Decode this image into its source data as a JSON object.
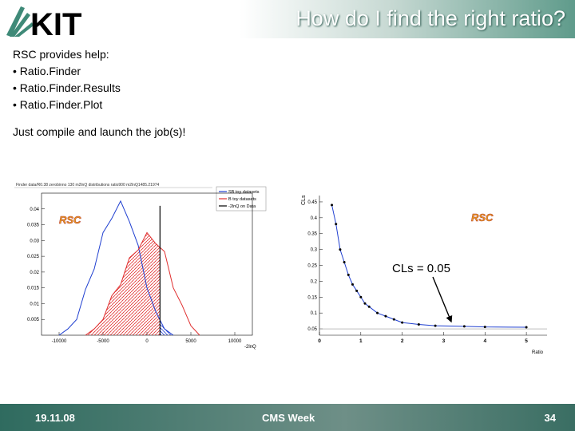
{
  "logo": {
    "text": "KIT"
  },
  "header": {
    "title": "How do I find the right ratio?"
  },
  "body": {
    "intro": "RSC provides help:",
    "bullets": [
      "• Ratio.Finder",
      "• Ratio.Finder.Results",
      "• Ratio.Finder.Plot"
    ],
    "note": "Just compile and launch the job(s)!"
  },
  "plot1": {
    "header_text": "Finder data/R0.38 zerobinno 130 m2lnQ distributions ratio900 m2lnQ1485.21974",
    "badge": "RSC",
    "legend": [
      "SB toy datasets",
      "B toy datasets",
      "-2lnQ on Data"
    ],
    "xlabel": "-2lnQ",
    "xticks": [
      "-10000",
      "-5000",
      "0",
      "5000",
      "10000"
    ],
    "yticks": [
      "0.005",
      "0.01",
      "0.015",
      "0.02",
      "0.025",
      "0.03",
      "0.035",
      "0.04"
    ]
  },
  "plot2": {
    "badge": "RSC",
    "ylabel": "CLs",
    "xlabel": "Ratio",
    "xticks": [
      "0",
      "1",
      "2",
      "3",
      "4",
      "5"
    ],
    "yticks": [
      "0.05",
      "0.1",
      "0.15",
      "0.2",
      "0.25",
      "0.3",
      "0.35",
      "0.4",
      "0.45"
    ],
    "annotation": "CLs = 0.05"
  },
  "colors": {
    "sb_series": "#1f3fd0",
    "b_series": "#e03030",
    "data_line": "#000000",
    "accent": "#3f8a78"
  },
  "chart_data": [
    {
      "type": "area",
      "xlabel": "-2lnQ",
      "ylim": [
        0,
        0.045
      ],
      "xlim": [
        -12000,
        12000
      ],
      "series": [
        {
          "name": "SB toy datasets",
          "x": [
            -10000,
            -9000,
            -8000,
            -7000,
            -6000,
            -5000,
            -4000,
            -3000,
            -2000,
            -1000,
            0,
            1000,
            2000,
            3000
          ],
          "values": [
            0.0,
            0.002,
            0.006,
            0.013,
            0.022,
            0.031,
            0.038,
            0.041,
            0.037,
            0.027,
            0.016,
            0.006,
            0.002,
            0.0
          ]
        },
        {
          "name": "B toy datasets",
          "x": [
            -7000,
            -6000,
            -5000,
            -4000,
            -3000,
            -2000,
            -1000,
            0,
            1000,
            2000,
            3000,
            4000,
            5000,
            6000
          ],
          "values": [
            0.0,
            0.002,
            0.006,
            0.011,
            0.017,
            0.023,
            0.028,
            0.031,
            0.03,
            0.025,
            0.016,
            0.008,
            0.003,
            0.0
          ]
        },
        {
          "name": "-2lnQ on Data",
          "x": [
            1485,
            1485
          ],
          "values": [
            0,
            0.041
          ]
        }
      ]
    },
    {
      "type": "line",
      "xlabel": "Ratio",
      "ylabel": "CLs",
      "xlim": [
        0,
        5.5
      ],
      "ylim": [
        0.03,
        0.47
      ],
      "x": [
        0.3,
        0.4,
        0.5,
        0.6,
        0.7,
        0.8,
        0.9,
        1.0,
        1.1,
        1.2,
        1.4,
        1.6,
        1.8,
        2.0,
        2.4,
        2.8,
        3.5,
        4.0,
        5.0
      ],
      "values": [
        0.44,
        0.38,
        0.3,
        0.26,
        0.22,
        0.19,
        0.17,
        0.15,
        0.13,
        0.12,
        0.1,
        0.09,
        0.08,
        0.07,
        0.064,
        0.06,
        0.058,
        0.056,
        0.055
      ]
    }
  ],
  "footer": {
    "date": "19.11.08",
    "center": "CMS Week",
    "page": "34"
  }
}
